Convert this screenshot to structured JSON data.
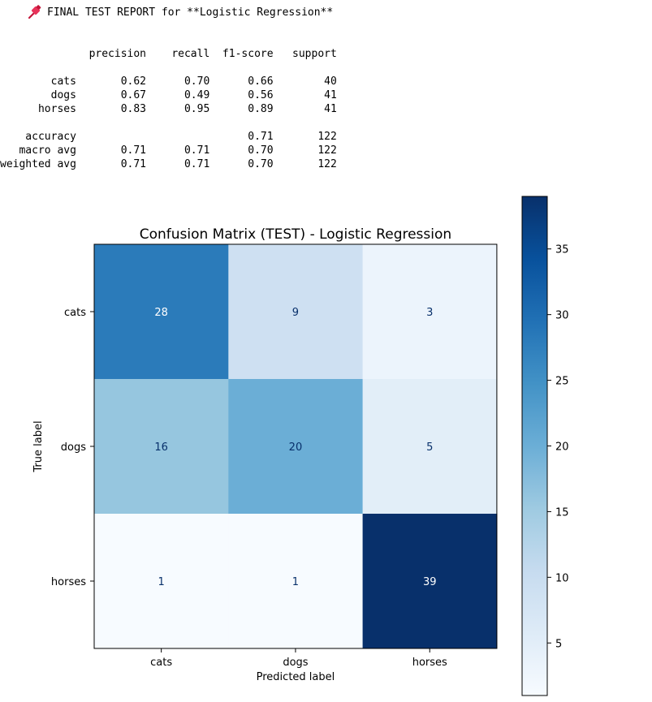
{
  "header": {
    "icon": "pushpin-icon",
    "text": "FINAL TEST REPORT for **Logistic Regression**"
  },
  "report": {
    "columns": [
      "precision",
      "recall",
      "f1-score",
      "support"
    ],
    "rows": [
      {
        "label": "cats",
        "precision": "0.62",
        "recall": "0.70",
        "f1": "0.66",
        "support": "40"
      },
      {
        "label": "dogs",
        "precision": "0.67",
        "recall": "0.49",
        "f1": "0.56",
        "support": "41"
      },
      {
        "label": "horses",
        "precision": "0.83",
        "recall": "0.95",
        "f1": "0.89",
        "support": "41"
      }
    ],
    "summary": [
      {
        "label": "accuracy",
        "precision": "",
        "recall": "",
        "f1": "0.71",
        "support": "122"
      },
      {
        "label": "macro avg",
        "precision": "0.71",
        "recall": "0.71",
        "f1": "0.70",
        "support": "122"
      },
      {
        "label": "weighted avg",
        "precision": "0.71",
        "recall": "0.71",
        "f1": "0.70",
        "support": "122"
      }
    ]
  },
  "chart_data": {
    "type": "heatmap",
    "title": "Confusion Matrix (TEST) - Logistic Regression",
    "xlabel": "Predicted label",
    "ylabel": "True label",
    "x_categories": [
      "cats",
      "dogs",
      "horses"
    ],
    "y_categories": [
      "cats",
      "dogs",
      "horses"
    ],
    "values": [
      [
        28,
        9,
        3
      ],
      [
        16,
        20,
        5
      ],
      [
        1,
        1,
        39
      ]
    ],
    "colormap": "Blues",
    "color_range": [
      1,
      39
    ],
    "colorbar_ticks": [
      5,
      10,
      15,
      20,
      25,
      30,
      35
    ],
    "grid": false
  }
}
